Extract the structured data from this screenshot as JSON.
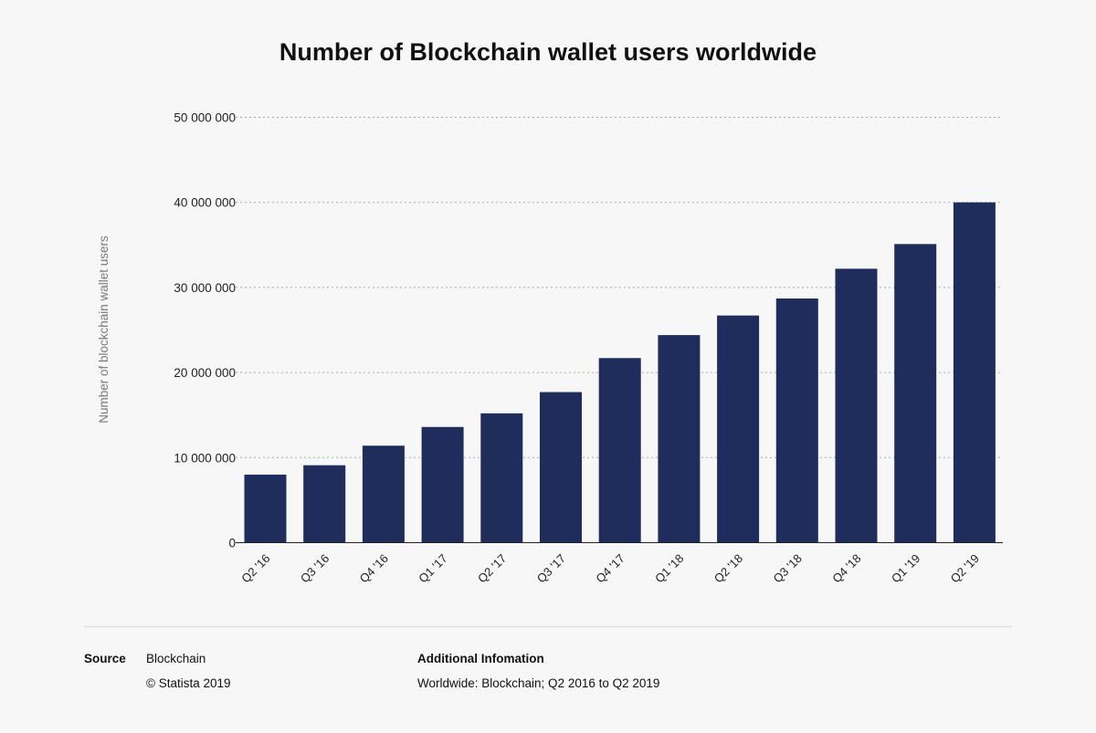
{
  "chart_data": {
    "type": "bar",
    "title": "Number of Blockchain wallet users worldwide",
    "ylabel": "Number of blockchain wallet users",
    "xlabel": "",
    "categories": [
      "Q2 '16",
      "Q3 '16",
      "Q4 '16",
      "Q1 '17",
      "Q2 '17",
      "Q3 '17",
      "Q4 '17",
      "Q1 '18",
      "Q2 '18",
      "Q3 '18",
      "Q4 '18",
      "Q1 '19",
      "Q2 '19"
    ],
    "values": [
      8000000,
      9100000,
      11400000,
      13600000,
      15200000,
      17700000,
      21700000,
      24400000,
      26700000,
      28700000,
      32200000,
      35100000,
      40000000
    ],
    "ylim": [
      0,
      50000000
    ],
    "yticks": [
      0,
      10000000,
      20000000,
      30000000,
      40000000,
      50000000
    ],
    "ytick_labels": [
      "0",
      "10 000 000",
      "20 000 000",
      "30 000 000",
      "40 000 000",
      "50 000 000"
    ],
    "grid": true,
    "bar_color": "#1f2d5c"
  },
  "footer": {
    "source_label": "Source",
    "source_value": "Blockchain",
    "copyright": "© Statista 2019",
    "additional_label": "Additional Infomation",
    "additional_value": "Worldwide: Blockchain; Q2 2016 to Q2 2019"
  }
}
